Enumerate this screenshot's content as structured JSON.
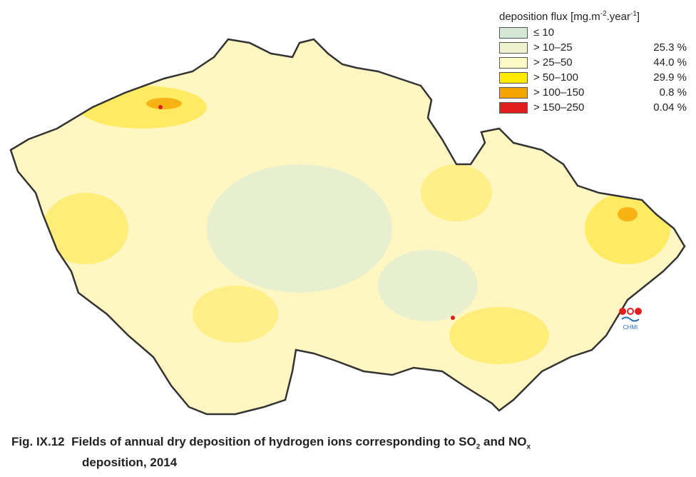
{
  "legend": {
    "title": {
      "text": "deposition flux [mg.m",
      "exp1": "-2",
      "mid": ".year",
      "exp2": "-1",
      "end": "]"
    },
    "items": [
      {
        "label": "≤ 10",
        "color": "#d5e8d4"
      },
      {
        "label": "> 10–25",
        "share": "25.3 %",
        "color": "#eef2cf"
      },
      {
        "label": "> 25–50",
        "share": "44.0 %",
        "color": "#fff9c4"
      },
      {
        "label": "> 50–100",
        "share": "29.9 %",
        "color": "#ffea00"
      },
      {
        "label": "> 100–150",
        "share": "0.8 %",
        "color": "#f4a500"
      },
      {
        "label": "> 150–250",
        "share": "0.04 %",
        "color": "#e01e1e"
      }
    ]
  },
  "logo": {
    "text": "CHMI"
  },
  "caption": {
    "prefix": "Fig. IX.12",
    "text": "Fields of annual dry deposition of hydrogen ions corresponding to SO",
    "sub1": "2",
    "mid": " and NO",
    "sub2": "x",
    "line2": "deposition, 2014"
  }
}
